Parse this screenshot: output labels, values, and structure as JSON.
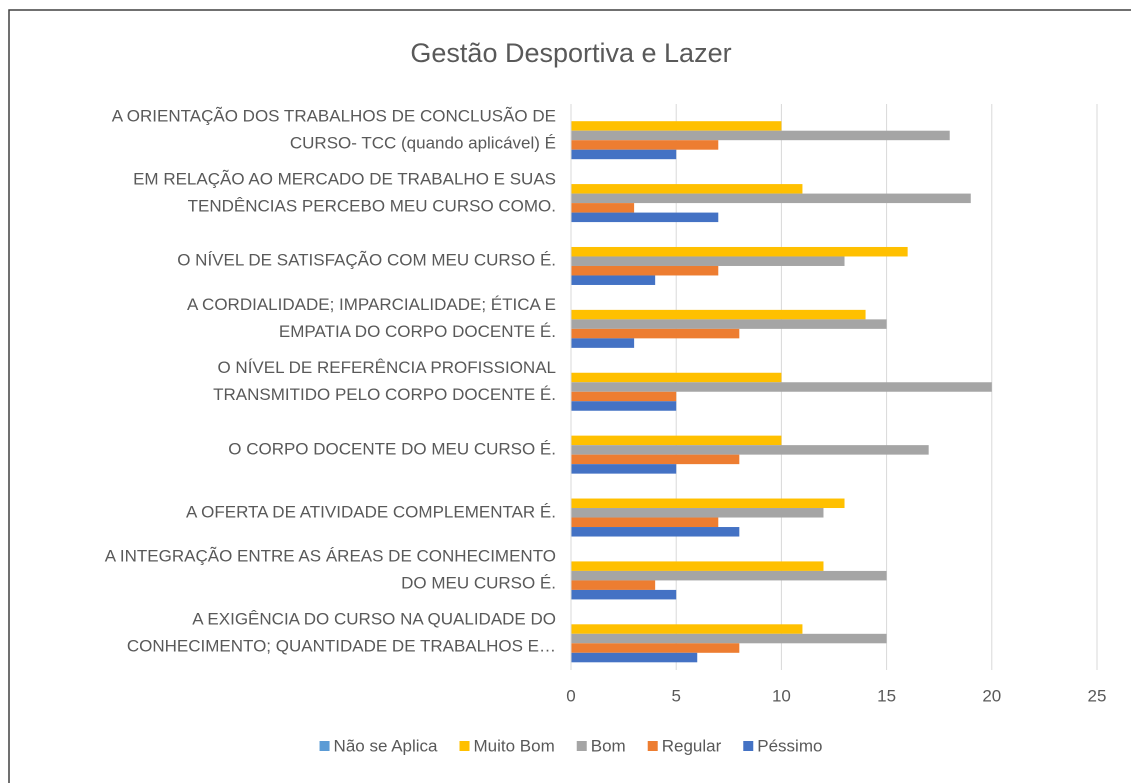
{
  "chart_data": {
    "type": "bar",
    "orientation": "horizontal",
    "title": "Gestão Desportiva e Lazer",
    "categories": [
      [
        "A ORIENTAÇÃO DOS TRABALHOS DE CONCLUSÃO DE",
        "CURSO- TCC (quando aplicável) É"
      ],
      [
        "EM RELAÇÃO AO MERCADO DE TRABALHO E SUAS",
        "TENDÊNCIAS PERCEBO MEU CURSO COMO."
      ],
      [
        "O NÍVEL DE SATISFAÇÃO COM MEU CURSO É."
      ],
      [
        "A CORDIALIDADE; IMPARCIALIDADE; ÉTICA E",
        "EMPATIA DO CORPO DOCENTE É."
      ],
      [
        "O NÍVEL DE REFERÊNCIA PROFISSIONAL",
        "TRANSMITIDO PELO CORPO DOCENTE É."
      ],
      [
        "O CORPO DOCENTE DO MEU CURSO É."
      ],
      [
        "A OFERTA DE ATIVIDADE COMPLEMENTAR É."
      ],
      [
        "A INTEGRAÇÃO ENTRE AS ÁREAS DE CONHECIMENTO",
        "DO MEU CURSO É."
      ],
      [
        "A EXIGÊNCIA DO CURSO NA QUALIDADE DO",
        "CONHECIMENTO; QUANTIDADE DE TRABALHOS E…"
      ]
    ],
    "series": [
      {
        "name": "Não se Aplica",
        "color": "#5b9bd5",
        "values": [
          0,
          0,
          0,
          0,
          0,
          0,
          0,
          0,
          0
        ]
      },
      {
        "name": "Muito Bom",
        "color": "#ffc000",
        "values": [
          10,
          11,
          16,
          14,
          10,
          10,
          13,
          12,
          11
        ]
      },
      {
        "name": "Bom",
        "color": "#a5a5a5",
        "values": [
          18,
          19,
          13,
          15,
          20,
          17,
          12,
          15,
          15
        ]
      },
      {
        "name": "Regular",
        "color": "#ed7d31",
        "values": [
          7,
          3,
          7,
          8,
          5,
          8,
          7,
          4,
          8
        ]
      },
      {
        "name": "Péssimo",
        "color": "#4472c4",
        "values": [
          5,
          7,
          4,
          3,
          5,
          5,
          8,
          5,
          6
        ]
      }
    ],
    "xlim": [
      0,
      25
    ],
    "xticks": [
      0,
      5,
      10,
      15,
      20,
      25
    ],
    "grid": true,
    "legend": "bottom"
  }
}
